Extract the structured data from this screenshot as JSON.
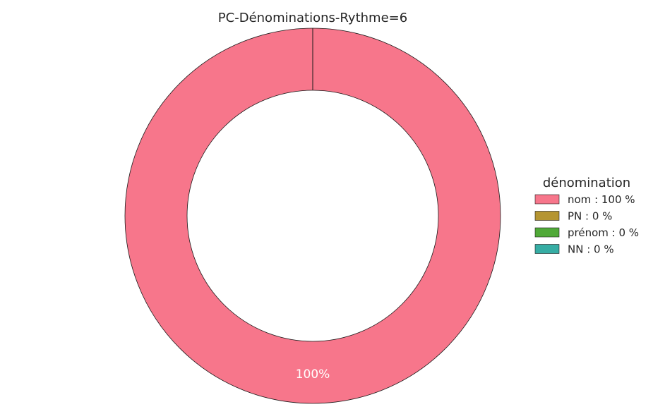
{
  "chart_data": {
    "type": "pie",
    "title": "PC-Dénominations-Rythme=6",
    "donut": true,
    "categories": [
      "nom",
      "PN",
      "prénom",
      "NN"
    ],
    "values": [
      100,
      0,
      0,
      0
    ],
    "colors": [
      "#f7768b",
      "#b59532",
      "#50a938",
      "#36ada4"
    ],
    "slice_labels": [
      "100%"
    ],
    "legend": {
      "title": "dénomination",
      "placement": "right",
      "entries": [
        "nom : 100 %",
        "PN : 0 %",
        "prénom : 0 %",
        "NN : 0 %"
      ]
    }
  }
}
